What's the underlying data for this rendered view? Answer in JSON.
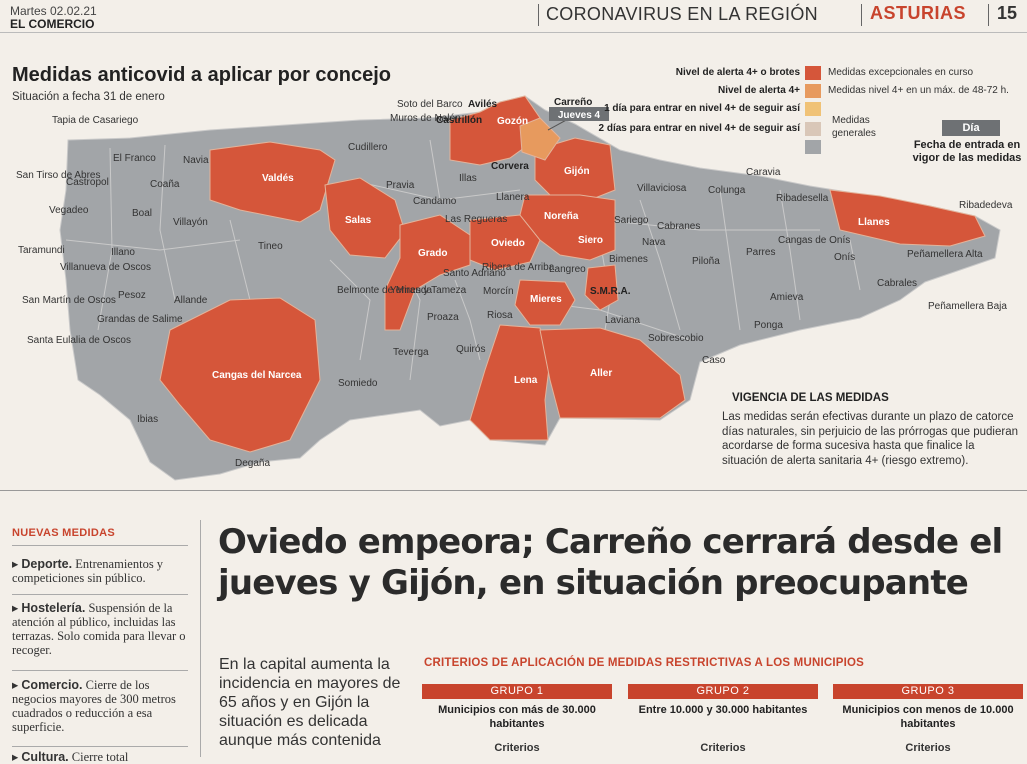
{
  "header": {
    "date": "Martes 02.02.21",
    "paper": "EL COMERCIO",
    "section": "CORONAVIRUS EN LA REGIÓN",
    "region": "ASTURIAS",
    "page": "15"
  },
  "map": {
    "title": "Medidas anticovid a aplicar por concejo",
    "subtitle": "Situación a fecha 31 de enero",
    "colors": {
      "exceptional": "#d5563a",
      "alert4": "#e79a5e",
      "one_day": "#f0c276",
      "two_days": "#d9c7b8",
      "general": "#a2a5a8"
    },
    "legend": {
      "left_exceptional": "Nivel de alerta 4+ o brotes",
      "left_alert4": "Nivel de alerta 4+",
      "left_one_day": "1 día para entrar en nivel 4+ de seguir así",
      "left_two_days": "2 días para entrar en nivel 4+ de seguir así",
      "right_exceptional": "Medidas excepcionales en curso",
      "right_alert4": "Medidas nivel 4+ en un máx. de 48-72 h.",
      "right_general": "Medidas generales",
      "dia_box": "Día",
      "dia_text": "Fecha de entrada en vigor de las medidas"
    },
    "callout": {
      "name": "Carreño",
      "day": "Jueves 4"
    },
    "labels": {
      "tapia": "Tapia de Casariego",
      "elfranco": "El Franco",
      "navia": "Navia",
      "valdes": "Valdés",
      "cudillero": "Cudillero",
      "sotodelbarco": "Soto del Barco",
      "muros": "Muros de Nalón",
      "castrillon": "Castrillón",
      "aviles": "Avilés",
      "gozon": "Gozón",
      "carreno": "Carreño",
      "corvera": "Corvera",
      "gijon": "Gijón",
      "illas": "Illas",
      "pravia": "Pravia",
      "candamo": "Candamo",
      "llanera": "Llanera",
      "salas": "Salas",
      "lasregueras": "Las Regueras",
      "noreña": "Noreña",
      "siero": "Siero",
      "sariego": "Sariego",
      "villaviciosa": "Villaviciosa",
      "colunga": "Colunga",
      "caravia": "Caravia",
      "ribadesella": "Ribadesella",
      "llanes": "Llanes",
      "ribadedeva": "Ribadedeva",
      "santirso": "San Tirso de Abres",
      "castropol": "Castropol",
      "coana": "Coaña",
      "vegadeo": "Vegadeo",
      "boal": "Boal",
      "villayon": "Villayón",
      "taramundi": "Taramundi",
      "illano": "Illano",
      "villanueva": "Villanueva de Oscos",
      "tineo": "Tineo",
      "grado": "Grado",
      "oviedo": "Oviedo",
      "santoadriano": "Santo Adriano",
      "ribera": "Ribera de Arriba",
      "yernes": "Yernes y Tameza",
      "belmonte": "Belmonte de Miranda",
      "morcin": "Morcín",
      "langreo": "Langreo",
      "bimenes": "Bimenes",
      "cabranes": "Cabranes",
      "nava": "Nava",
      "pilona": "Piloña",
      "parres": "Parres",
      "cangasonis": "Cangas de Onís",
      "onis": "Onís",
      "penamelleraalta": "Peñamellera Alta",
      "cabrales": "Cabrales",
      "penamellerabaja": "Peñamellera Baja",
      "pesoz": "Pesoz",
      "allande": "Allande",
      "sanmartin": "San Martín de Oscos",
      "grandas": "Grandas de Salime",
      "santaeulalia": "Santa Eulalia de Oscos",
      "proaza": "Proaza",
      "riosa": "Riosa",
      "mieres": "Mieres",
      "smra": "S.M.R.A.",
      "laviana": "Laviana",
      "amieva": "Amieva",
      "ponga": "Ponga",
      "sobrescobio": "Sobrescobio",
      "caso": "Caso",
      "teverga": "Teverga",
      "quiros": "Quirós",
      "lena": "Lena",
      "aller": "Aller",
      "somiedo": "Somiedo",
      "cangasnarcea": "Cangas del Narcea",
      "ibias": "Ibias",
      "degana": "Degaña"
    },
    "vigencia": {
      "title": "VIGENCIA DE LAS MEDIDAS",
      "body": "Las medidas serán efectivas durante un plazo de catorce días naturales, sin perjuicio de las prórrogas que pudieran acordarse de forma sucesiva hasta que finalice la situación de alerta sanitaria 4+ (riesgo extremo)."
    }
  },
  "nuevas_medidas": {
    "title": "NUEVAS MEDIDAS",
    "items": [
      {
        "label": "Deporte.",
        "text": "Entrenamientos y competiciones sin público."
      },
      {
        "label": "Hostelería.",
        "text": "Suspensión de la atención al público, incluidas las terrazas. Solo comida para llevar o recoger."
      },
      {
        "label": "Comercio.",
        "text": "Cierre de los negocios mayores de 300 metros cuadrados o reducción a esa superficie."
      },
      {
        "label": "Cultura.",
        "text": "Cierre total"
      }
    ]
  },
  "article": {
    "headline": "Oviedo empeora; Carreño cerrará desde el jueves y Gijón, en situación preocupante",
    "lede": "En la capital aumenta la incidencia en mayores de 65 años y en Gijón la situación es delicada aunque más contenida"
  },
  "criterios": {
    "title": "CRITERIOS DE APLICACIÓN DE MEDIDAS RESTRICTIVAS A LOS MUNICIPIOS",
    "groups": [
      {
        "name": "GRUPO 1",
        "desc": "Municipios con más de 30.000 habitantes",
        "criteria": "Criterios"
      },
      {
        "name": "GRUPO 2",
        "desc": "Entre 10.000 y 30.000 habitantes",
        "criteria": "Criterios"
      },
      {
        "name": "GRUPO 3",
        "desc": "Municipios con menos de 10.000 habitantes",
        "criteria": "Criterios"
      }
    ]
  }
}
